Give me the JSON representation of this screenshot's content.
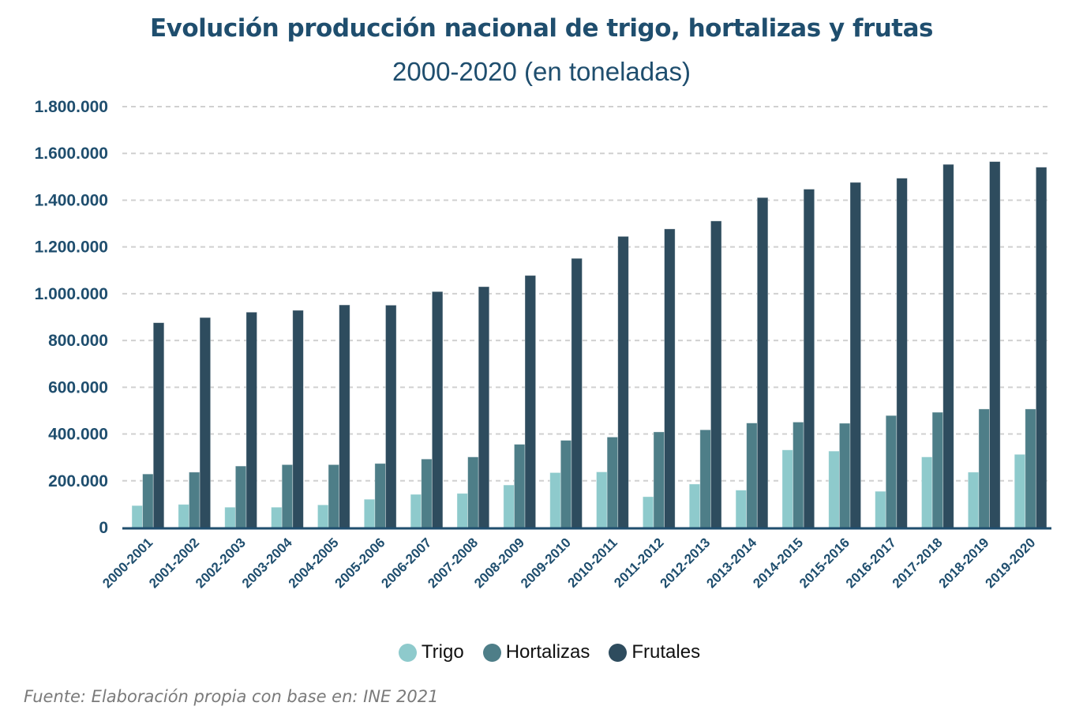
{
  "chart_data": {
    "type": "bar",
    "title": "Evolución producción nacional de trigo, hortalizas y frutas",
    "subtitle": "2000-2020 (en toneladas)",
    "xlabel": "",
    "ylabel": "",
    "ylim": [
      0,
      1800000
    ],
    "yticks": [
      0,
      200000,
      400000,
      600000,
      800000,
      1000000,
      1200000,
      1400000,
      1600000,
      1800000
    ],
    "ytick_labels": [
      "0",
      "200.000",
      "400.000",
      "600.000",
      "800.000",
      "1.000.000",
      "1.200.000",
      "1.400.000",
      "1.600.000",
      "1.800.000"
    ],
    "grid": true,
    "legend_position": "bottom",
    "categories": [
      "2000-2001",
      "2001-2002",
      "2002-2003",
      "2003-2004",
      "2004-2005",
      "2005-2006",
      "2006-2007",
      "2007-2008",
      "2008-2009",
      "2009-2010",
      "2010-2011",
      "2011-2012",
      "2012-2013",
      "2013-2014",
      "2014-2015",
      "2015-2016",
      "2016-2017",
      "2017-2018",
      "2018-2019",
      "2019-2020"
    ],
    "series": [
      {
        "name": "Trigo",
        "color": "#8ecacc",
        "values": [
          94000,
          99000,
          87000,
          87000,
          97000,
          121000,
          142000,
          146000,
          182000,
          235000,
          238000,
          132000,
          186000,
          160000,
          332000,
          327000,
          155000,
          302000,
          237000,
          313000
        ]
      },
      {
        "name": "Hortalizas",
        "color": "#4e7e88",
        "values": [
          229000,
          237000,
          263000,
          269000,
          269000,
          274000,
          293000,
          302000,
          356000,
          373000,
          387000,
          409000,
          418000,
          447000,
          451000,
          446000,
          479000,
          493000,
          507000,
          507000
        ]
      },
      {
        "name": "Frutales",
        "color": "#2e4c5e",
        "values": [
          876000,
          898000,
          921000,
          929000,
          952000,
          951000,
          1009000,
          1030000,
          1078000,
          1151000,
          1245000,
          1277000,
          1311000,
          1411000,
          1447000,
          1476000,
          1494000,
          1553000,
          1565000,
          1541000
        ]
      }
    ],
    "source": "Fuente: Elaboración propia con base en: INE 2021"
  },
  "colors": {
    "text": "#1f4e6e",
    "grid": "#d0d0d0",
    "axis": "#1f4e6e"
  }
}
